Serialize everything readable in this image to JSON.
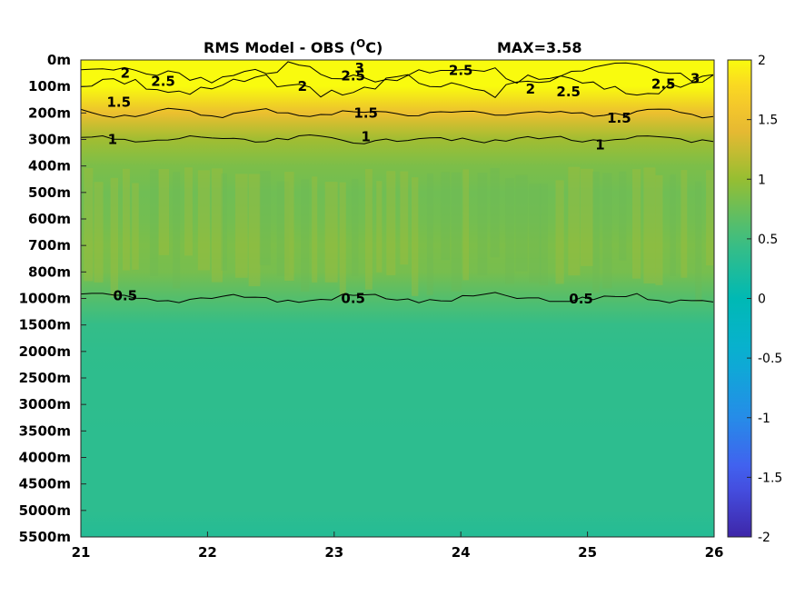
{
  "chart_data": {
    "type": "heatmap",
    "title": "RMS Model - OBS (",
    "title_unit": "O",
    "title_unit_tail": "C)",
    "max_label": "MAX=3.58",
    "x_ticks": [
      "21",
      "22",
      "23",
      "24",
      "25",
      "26"
    ],
    "x_range": [
      21,
      26
    ],
    "y_ticks": [
      "0m",
      "100m",
      "200m",
      "300m",
      "400m",
      "500m",
      "600m",
      "700m",
      "800m",
      "1000m",
      "1500m",
      "2000m",
      "2500m",
      "3000m",
      "3500m",
      "4000m",
      "4500m",
      "5000m",
      "5500m"
    ],
    "color_scale": {
      "ticks": [
        "2",
        "1.5",
        "1",
        "0.5",
        "0",
        "-0.5",
        "-1",
        "-1.5",
        "-2"
      ],
      "range": [
        -2,
        2
      ],
      "colormap": "parula"
    },
    "depth_profile": [
      2.9,
      2.3,
      1.5,
      1.05,
      0.85,
      0.78,
      0.8,
      0.85,
      0.82,
      0.62,
      0.42,
      0.38,
      0.37,
      0.37,
      0.36,
      0.36,
      0.36,
      0.36,
      0.3
    ],
    "contour_labels": [
      {
        "text": "2",
        "x": 21.35,
        "depth": "50m"
      },
      {
        "text": "2.5",
        "x": 21.65,
        "depth": "80m"
      },
      {
        "text": "1.5",
        "x": 21.3,
        "depth": "160m"
      },
      {
        "text": "1",
        "x": 21.25,
        "depth": "300m"
      },
      {
        "text": "2",
        "x": 22.75,
        "depth": "100m"
      },
      {
        "text": "3",
        "x": 23.2,
        "depth": "30m"
      },
      {
        "text": "2.5",
        "x": 23.15,
        "depth": "60m"
      },
      {
        "text": "1.5",
        "x": 23.25,
        "depth": "200m"
      },
      {
        "text": "1",
        "x": 23.25,
        "depth": "290m"
      },
      {
        "text": "2.5",
        "x": 24.0,
        "depth": "40m"
      },
      {
        "text": "2",
        "x": 24.55,
        "depth": "110m"
      },
      {
        "text": "2.5",
        "x": 24.85,
        "depth": "120m"
      },
      {
        "text": "1.5",
        "x": 25.25,
        "depth": "220m"
      },
      {
        "text": "1",
        "x": 25.1,
        "depth": "320m"
      },
      {
        "text": "2.5",
        "x": 25.6,
        "depth": "90m"
      },
      {
        "text": "3",
        "x": 25.85,
        "depth": "70m"
      },
      {
        "text": "0.5",
        "x": 21.35,
        "depth": "980m"
      },
      {
        "text": "0.5",
        "x": 23.15,
        "depth": "1000m"
      },
      {
        "text": "0.5",
        "x": 24.95,
        "depth": "1010m"
      }
    ]
  }
}
